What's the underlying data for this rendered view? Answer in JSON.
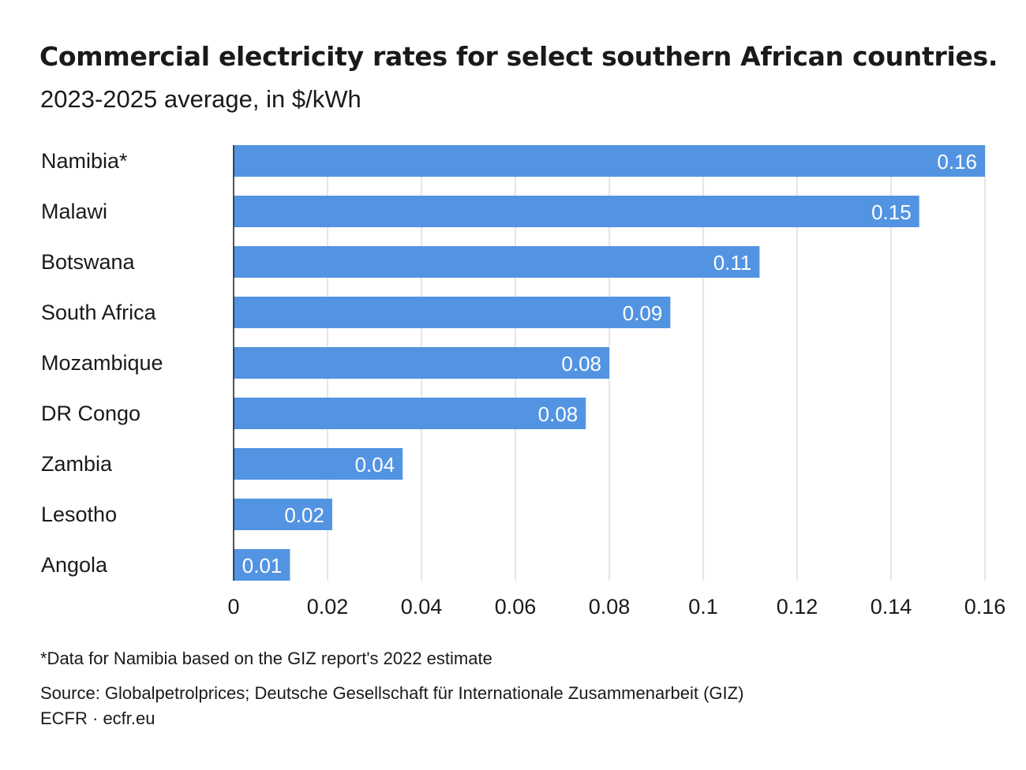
{
  "header": {
    "title": "Commercial electricity rates for select southern African countries.",
    "subtitle": "2023-2025 average, in $/kWh"
  },
  "chart_data": {
    "type": "bar",
    "orientation": "horizontal",
    "categories": [
      "Namibia*",
      "Malawi",
      "Botswana",
      "South Africa",
      "Mozambique",
      "DR Congo",
      "Zambia",
      "Lesotho",
      "Angola"
    ],
    "values": [
      0.16,
      0.146,
      0.112,
      0.093,
      0.08,
      0.075,
      0.036,
      0.021,
      0.012
    ],
    "value_labels": [
      "0.16",
      "0.15",
      "0.11",
      "0.09",
      "0.08",
      "0.08",
      "0.04",
      "0.02",
      "0.01"
    ],
    "xlim": [
      0,
      0.16
    ],
    "x_ticks": [
      0,
      0.02,
      0.04,
      0.06,
      0.08,
      0.1,
      0.12,
      0.14,
      0.16
    ],
    "x_tick_labels": [
      "0",
      "0.02",
      "0.04",
      "0.06",
      "0.08",
      "0.1",
      "0.12",
      "0.14",
      "0.16"
    ],
    "grid": "vertical",
    "bar_color": "#5294e2",
    "grid_color": "#dddddd",
    "axis_color": "#1a1a1a"
  },
  "footer": {
    "note": "*Data for Namibia based on the GIZ report's 2022 estimate",
    "source": "Source: Globalpetrolprices; Deutsche Gesellschaft für Internationale Zusammenarbeit (GIZ)",
    "credit": "ECFR · ecfr.eu"
  }
}
